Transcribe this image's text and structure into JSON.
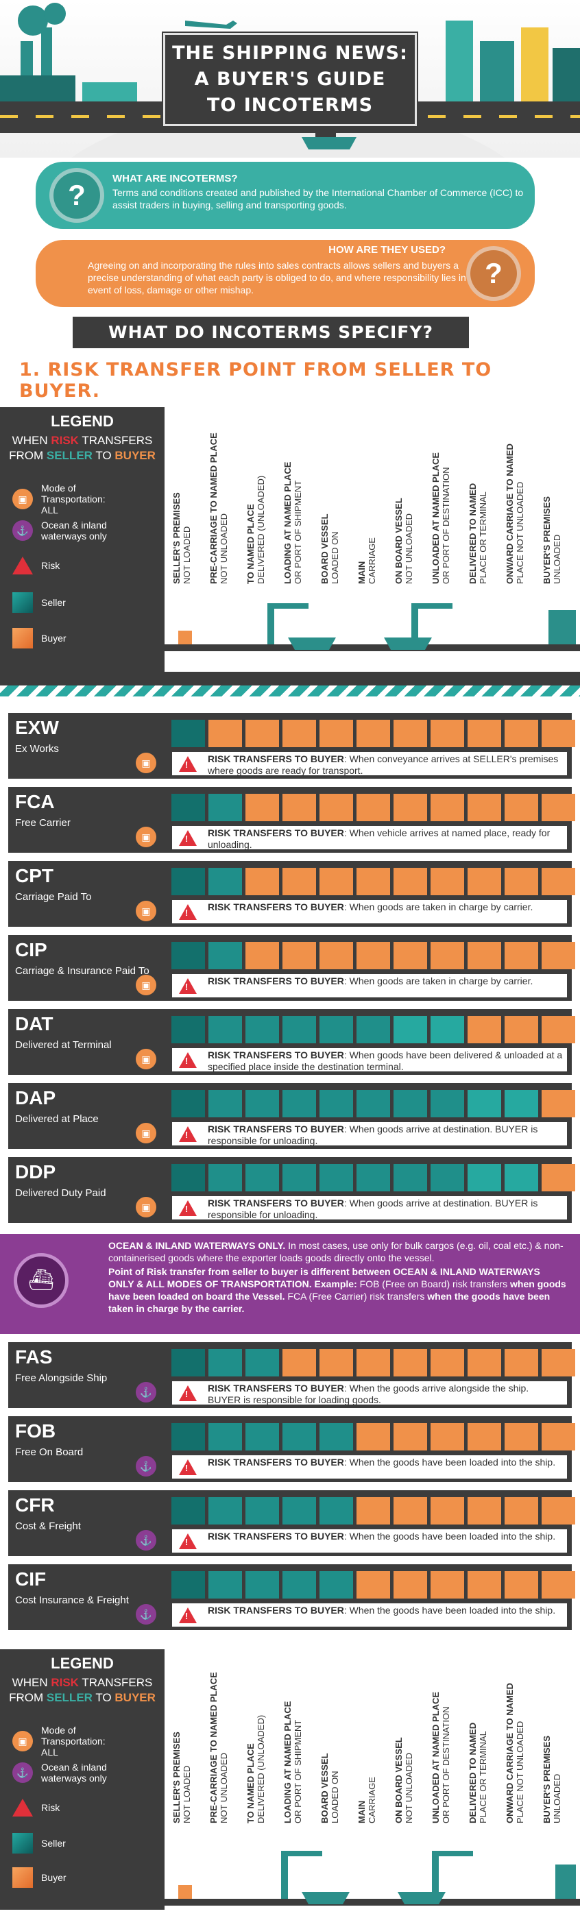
{
  "header": {
    "title_line1": "THE SHIPPING NEWS:",
    "title_line2": "A BUYER'S GUIDE",
    "title_line3": "TO INCOTERMS"
  },
  "what_are": {
    "heading": "WHAT ARE INCOTERMS?",
    "body": "Terms and conditions created and published by the International Chamber of Commerce (ICC) to assist traders in buying, selling and transporting goods."
  },
  "how_used": {
    "heading": "HOW ARE THEY USED?",
    "body": "Agreeing on and incorporating the rules into sales contracts allows sellers and buyers a precise understanding of what each party is obliged to do, and where responsibility lies in event of loss, damage or other mishap."
  },
  "specify_heading": "WHAT DO INCOTERMS SPECIFY?",
  "risk_heading": "1. RISK TRANSFER POINT FROM SELLER TO BUYER.",
  "legend": {
    "title": "LEGEND",
    "line1_a": "WHEN ",
    "line1_risk": "RISK",
    "line1_b": " TRANSFERS",
    "line2_a": "FROM ",
    "line2_seller": "SELLER",
    "line2_b": " TO ",
    "line2_buyer": "BUYER",
    "mode_all": "Mode of Transportation: ALL",
    "mode_ocean": "Ocean & inland waterways only",
    "risk": "Risk",
    "seller": "Seller",
    "buyer": "Buyer"
  },
  "columns": [
    {
      "bold": "SELLER'S PREMISES",
      "normal": "NOT LOADED"
    },
    {
      "bold": "PRE-CARRIAGE TO NAMED PLACE",
      "normal": "NOT UNLOADED"
    },
    {
      "bold": "TO NAMED PLACE",
      "normal": "DELIVERED (UNLOADED)"
    },
    {
      "bold": "LOADING AT NAMED PLACE",
      "normal": "OR PORT OF SHIPMENT"
    },
    {
      "bold": "BOARD VESSEL",
      "normal": "LOADED ON"
    },
    {
      "bold": "MAIN",
      "normal": "CARRIAGE"
    },
    {
      "bold": "ON BOARD VESSEL",
      "normal": "NOT UNLOADED"
    },
    {
      "bold": "UNLOADED AT NAMED PLACE",
      "normal": "OR PORT OF DESTINATION"
    },
    {
      "bold": "DELIVERED TO NAMED",
      "normal": "PLACE OR TERMINAL"
    },
    {
      "bold": "ONWARD CARRIAGE TO NAMED",
      "normal": "PLACE NOT UNLOADED"
    },
    {
      "bold": "BUYER'S PREMISES",
      "normal": "UNLOADED"
    }
  ],
  "risk_label": "RISK TRANSFERS TO BUYER",
  "terms_all": [
    {
      "code": "EXW",
      "name": "Ex Works",
      "seller_cells": 1,
      "text": ": When conveyance arrives at SELLER's premises where goods are ready for transport."
    },
    {
      "code": "FCA",
      "name": "Free Carrier",
      "seller_cells": 2,
      "text": ": When vehicle arrives at named place, ready for unloading."
    },
    {
      "code": "CPT",
      "name": "Carriage Paid To",
      "seller_cells": 2,
      "text": ": When goods are taken in charge by carrier."
    },
    {
      "code": "CIP",
      "name": "Carriage & Insurance Paid To",
      "seller_cells": 2,
      "text": ": When goods are taken in charge by carrier."
    },
    {
      "code": "DAT",
      "name": "Delivered at Terminal",
      "seller_cells": 8,
      "text": ": When goods have been delivered & unloaded at a specified place inside the destination terminal."
    },
    {
      "code": "DAP",
      "name": "Delivered at Place",
      "seller_cells": 10,
      "text": ": When goods arrive at destination. BUYER is responsible for unloading."
    },
    {
      "code": "DDP",
      "name": "Delivered Duty Paid",
      "seller_cells": 10,
      "text": ": When goods arrive at destination. BUYER is responsible for unloading."
    }
  ],
  "ocean_band": {
    "p1_bold": "OCEAN & INLAND WATERWAYS ONLY.",
    "p1": " In most cases, use only for bulk cargos (e.g. oil, coal etc.) & non-containerised goods where the exporter loads goods directly onto the vessel.",
    "p2_bold": "Point of Risk transfer from seller to buyer is different between OCEAN & INLAND WATERWAYS ONLY & ALL MODES OF TRANSPORTATION. Example:",
    "p2_a": " FOB (Free on Board) risk transfers ",
    "p2_bold2": "when goods have been loaded on board the Vessel.",
    "p2_b": " FCA (Free Carrier) risk transfers ",
    "p2_bold3": "when the goods have been taken in charge by the carrier."
  },
  "terms_ocean": [
    {
      "code": "FAS",
      "name": "Free Alongside Ship",
      "seller_cells": 3,
      "text": ": When the goods arrive alongside the ship. BUYER is responsible for loading goods."
    },
    {
      "code": "FOB",
      "name": "Free On Board",
      "seller_cells": 5,
      "text": ": When the goods have been loaded into the ship."
    },
    {
      "code": "CFR",
      "name": "Cost & Freight",
      "seller_cells": 5,
      "text": ": When the goods have been loaded into the ship."
    },
    {
      "code": "CIF",
      "name": "Cost Insurance & Freight",
      "seller_cells": 5,
      "text": ": When the goods have been loaded into the ship."
    }
  ],
  "colors": {
    "seller": "#13706c",
    "buyer": "#f0914a",
    "risk": "#e0303a",
    "ocean": "#8b3d93",
    "dark": "#3c3c3c"
  }
}
